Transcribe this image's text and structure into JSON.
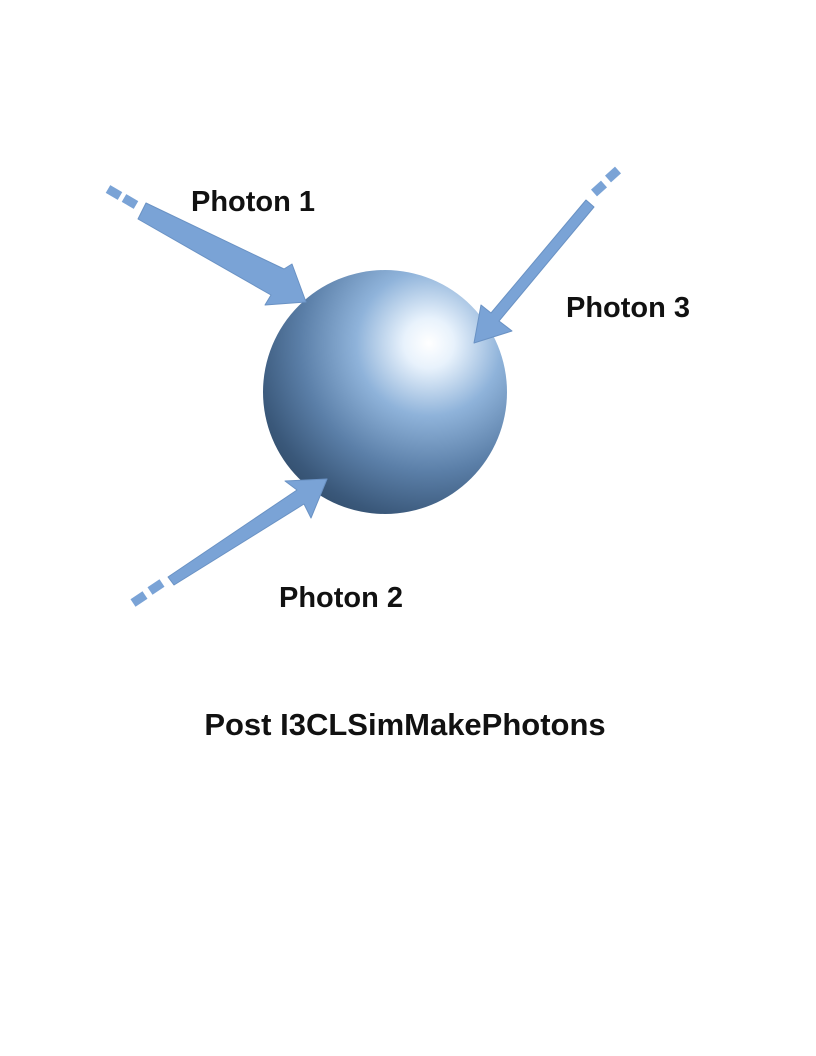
{
  "photons": [
    {
      "id": "photon-1",
      "label": "Photon 1"
    },
    {
      "id": "photon-2",
      "label": "Photon 2"
    },
    {
      "id": "photon-3",
      "label": "Photon 3"
    }
  ],
  "caption": "Post I3CLSimMakePhotons",
  "colors": {
    "arrow": "#7aa3d6",
    "arrow_stroke": "#6a92c4",
    "sphere_highlight": "#ffffff",
    "sphere_mid": "#7fa6d1",
    "sphere_dark": "#2e4a66",
    "text": "#111111"
  }
}
